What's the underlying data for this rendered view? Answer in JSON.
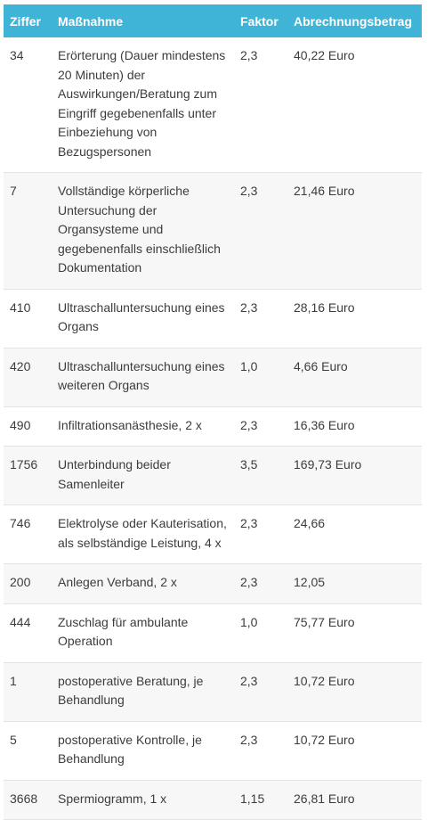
{
  "table": {
    "headers": [
      "Ziffer",
      "Maßnahme",
      "Faktor",
      "Abrechnungsbetrag"
    ],
    "rows": [
      [
        "34",
        "Erörterung (Dauer mindestens 20 Minuten) der Auswirkungen/Beratung zum Eingriff gegebenenfalls unter Einbeziehung von Bezugspersonen",
        "2,3",
        "40,22 Euro"
      ],
      [
        "7",
        "Vollständige körperliche Untersuchung der Organsysteme und gegebenenfalls einschließlich Dokumentation",
        "2,3",
        "21,46 Euro"
      ],
      [
        "410",
        "Ultraschalluntersuchung eines Organs",
        "2,3",
        "28,16 Euro"
      ],
      [
        "420",
        "Ultraschalluntersuchung eines weiteren Organs",
        "1,0",
        "4,66 Euro"
      ],
      [
        "490",
        "Infiltrationsanästhesie, 2 x",
        "2,3",
        "16,36 Euro"
      ],
      [
        "1756",
        "Unterbindung beider Samenleiter",
        "3,5",
        "169,73 Euro"
      ],
      [
        "746",
        "Elektrolyse oder Kauterisation, als selbständige Leistung, 4 x",
        "2,3",
        "24,66"
      ],
      [
        "200",
        "Anlegen Verband, 2 x",
        "2,3",
        "12,05"
      ],
      [
        "444",
        "Zuschlag für ambulante Operation",
        "1,0",
        "75,77 Euro"
      ],
      [
        "1",
        "postoperative Beratung, je Behandlung",
        "2,3",
        "10,72 Euro"
      ],
      [
        "5",
        "postoperative Kontrolle, je Behandlung",
        "2,3",
        "10,72 Euro"
      ],
      [
        "3668",
        "Spermiogramm, 1 x",
        "1,15",
        "26,81 Euro"
      ]
    ]
  }
}
